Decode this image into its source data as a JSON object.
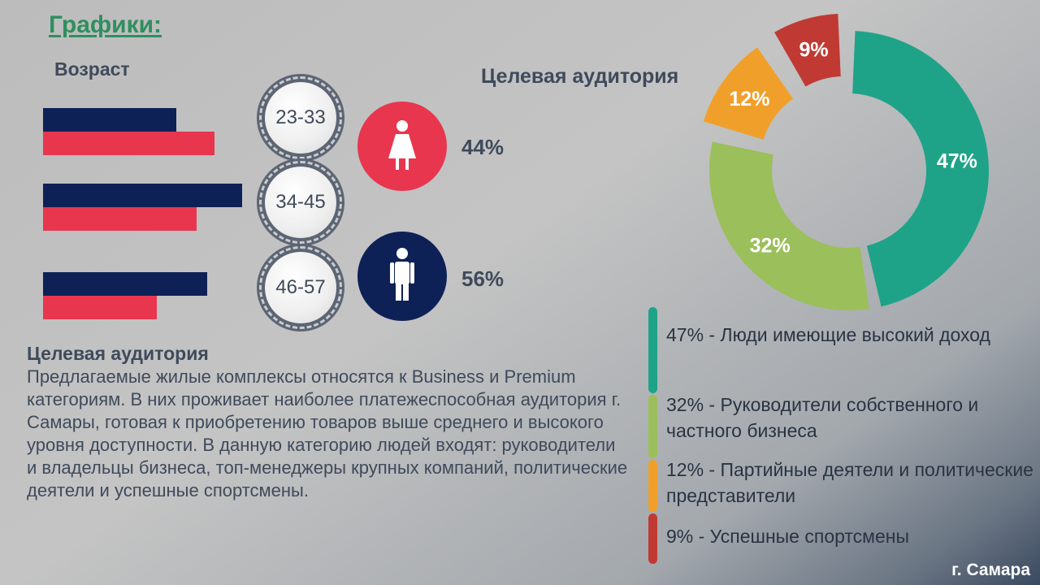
{
  "header": {
    "title": "Графики:"
  },
  "age_section": {
    "label": "Возраст",
    "groups": [
      "23-33",
      "34-45",
      "46-57"
    ]
  },
  "gender": {
    "female_pct": "44%",
    "male_pct": "56%",
    "female_color": "#e8364f",
    "male_color": "#0e2157",
    "female_icon": "female-icon",
    "male_icon": "male-icon"
  },
  "audience_title": "Целевая аудитория",
  "description": {
    "title": "Целевая аудитория",
    "body": "Предлагаемые жилые комплексы относятся к Business и Premium категориям. В них проживает наиболее платежеспособная аудитория г. Самары, готовая к приобретению товаров выше среднего и высокого уровня доступности. В данную категорию людей входят: руководители и владельцы бизнеса, топ-менеджеры крупных компаний, политические деятели и успешные спортсмены."
  },
  "legend": [
    {
      "text": "47% - Люди имеющие высокий доход",
      "color": "#1fa388"
    },
    {
      "text": "32% -  Руководители собственного и частного бизнеса",
      "color": "#9bbf5a"
    },
    {
      "text": "12% - Партийные деятели и политические представители",
      "color": "#f0a02a"
    },
    {
      "text": " 9% - Успешные спортсмены",
      "color": "#c03a33"
    }
  ],
  "city": "г. Самара",
  "chart_data": [
    {
      "type": "bar",
      "categories": [
        "23-33",
        "34-45",
        "46-57"
      ],
      "series": [
        {
          "values": [
            53,
            79,
            65
          ],
          "color": "#0e2157"
        },
        {
          "values": [
            68,
            61,
            45
          ],
          "color": "#e8364f"
        }
      ]
    },
    {
      "type": "pie",
      "title": "Целевая аудитория",
      "labels": [
        "47%",
        "32%",
        "12%",
        "9%"
      ],
      "values": [
        47,
        32,
        12,
        9
      ],
      "colors": [
        "#1fa388",
        "#9bbf5a",
        "#f0a02a",
        "#c03a33"
      ]
    }
  ]
}
